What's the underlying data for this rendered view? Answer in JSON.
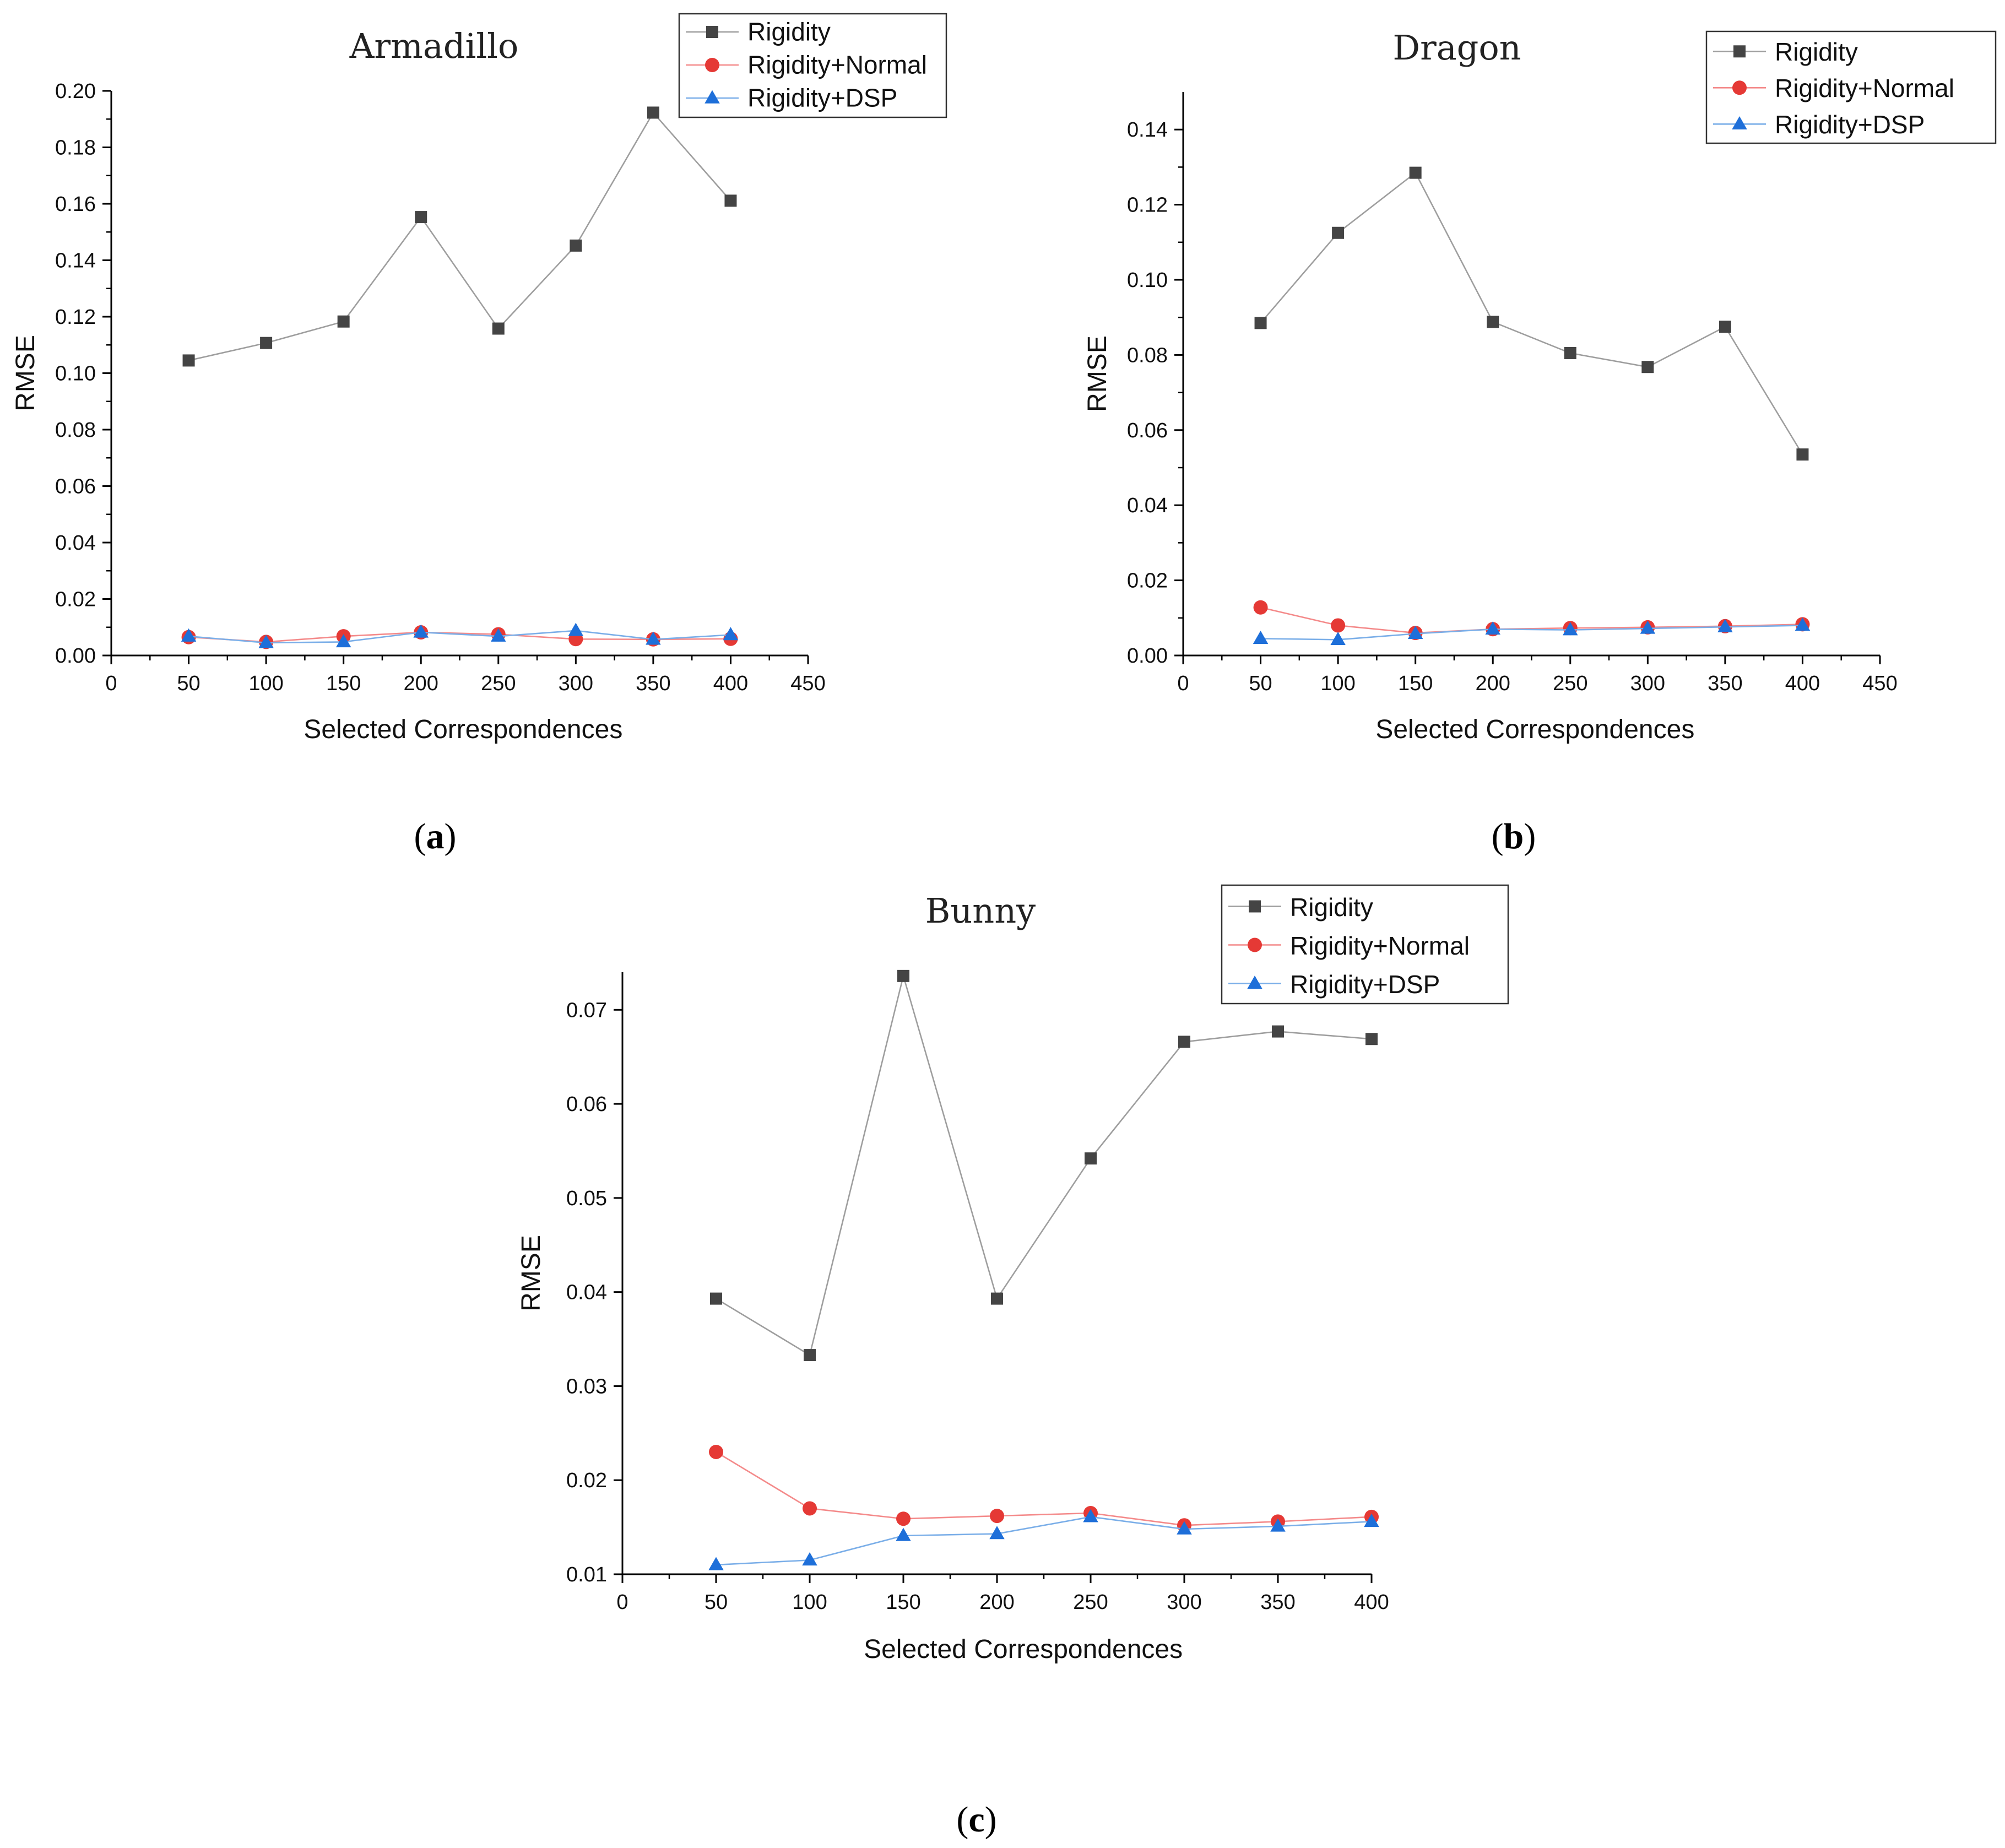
{
  "chart_data": [
    {
      "type": "line",
      "panel": "(a)",
      "panel_letter": "a",
      "title": "Armadillo",
      "xlabel": "Selected Correspondences",
      "ylabel": "RMSE",
      "xlim": [
        0,
        450
      ],
      "ylim": [
        0,
        0.2
      ],
      "x_ticks": [
        "0",
        "50",
        "100",
        "150",
        "200",
        "250",
        "300",
        "350",
        "400",
        "450"
      ],
      "y_ticks": [
        "0.00",
        "0.02",
        "0.04",
        "0.06",
        "0.08",
        "0.10",
        "0.12",
        "0.14",
        "0.16",
        "0.18",
        "0.20"
      ],
      "legend_position": "top-right",
      "x": [
        50,
        100,
        150,
        200,
        250,
        300,
        350,
        400
      ],
      "series": [
        {
          "name": "Rigidity",
          "color": "#444444",
          "line_color": "#9e9e9e",
          "marker": "square",
          "values": [
            0.1045,
            0.1107,
            0.1183,
            0.1553,
            0.1158,
            0.1452,
            0.1923,
            0.1611
          ]
        },
        {
          "name": "Rigidity+Normal",
          "color": "#e53935",
          "line_color": "#f48a8a",
          "marker": "circle",
          "values": [
            0.0065,
            0.0048,
            0.0068,
            0.0082,
            0.0075,
            0.0058,
            0.0057,
            0.0059
          ]
        },
        {
          "name": "Rigidity+DSP",
          "color": "#1e6fd9",
          "line_color": "#7aaee8",
          "marker": "triangle",
          "values": [
            0.0068,
            0.0045,
            0.0048,
            0.0082,
            0.0068,
            0.0088,
            0.0057,
            0.0073
          ]
        }
      ]
    },
    {
      "type": "line",
      "panel": "(b)",
      "panel_letter": "b",
      "title": "Dragon",
      "xlabel": "Selected Correspondences",
      "ylabel": "RMSE",
      "xlim": [
        0,
        450
      ],
      "ylim": [
        0,
        0.15
      ],
      "x_ticks": [
        "0",
        "50",
        "100",
        "150",
        "200",
        "250",
        "300",
        "350",
        "400",
        "450"
      ],
      "y_ticks": [
        "0.00",
        "0.02",
        "0.04",
        "0.06",
        "0.08",
        "0.10",
        "0.12",
        "0.14"
      ],
      "legend_position": "top-right",
      "x": [
        50,
        100,
        150,
        200,
        250,
        300,
        350,
        400
      ],
      "series": [
        {
          "name": "Rigidity",
          "color": "#444444",
          "line_color": "#9e9e9e",
          "marker": "square",
          "values": [
            0.0885,
            0.1125,
            0.1285,
            0.0888,
            0.0805,
            0.0768,
            0.0875,
            0.0535
          ]
        },
        {
          "name": "Rigidity+Normal",
          "color": "#e53935",
          "line_color": "#f48a8a",
          "marker": "circle",
          "values": [
            0.0128,
            0.008,
            0.006,
            0.007,
            0.0073,
            0.0075,
            0.0078,
            0.0083
          ]
        },
        {
          "name": "Rigidity+DSP",
          "color": "#1e6fd9",
          "line_color": "#7aaee8",
          "marker": "triangle",
          "values": [
            0.0045,
            0.0042,
            0.0058,
            0.007,
            0.0068,
            0.0072,
            0.0076,
            0.008
          ]
        }
      ]
    },
    {
      "type": "line",
      "panel": "(c)",
      "panel_letter": "c",
      "title": "Bunny",
      "xlabel": "Selected Correspondences",
      "ylabel": "RMSE",
      "xlim": [
        0,
        400
      ],
      "ylim": [
        0.01,
        0.074
      ],
      "x_ticks": [
        "0",
        "50",
        "100",
        "150",
        "200",
        "250",
        "300",
        "350",
        "400"
      ],
      "y_ticks": [
        "0.01",
        "0.02",
        "0.03",
        "0.04",
        "0.05",
        "0.06",
        "0.07"
      ],
      "legend_position": "top-right",
      "x": [
        50,
        100,
        150,
        200,
        250,
        300,
        350,
        400
      ],
      "series": [
        {
          "name": "Rigidity",
          "color": "#444444",
          "line_color": "#9e9e9e",
          "marker": "square",
          "values": [
            0.0393,
            0.0333,
            0.0736,
            0.0393,
            0.0542,
            0.0666,
            0.0677,
            0.0669
          ]
        },
        {
          "name": "Rigidity+Normal",
          "color": "#e53935",
          "line_color": "#f48a8a",
          "marker": "circle",
          "values": [
            0.023,
            0.017,
            0.0159,
            0.0162,
            0.0165,
            0.0152,
            0.0156,
            0.0161
          ]
        },
        {
          "name": "Rigidity+DSP",
          "color": "#1e6fd9",
          "line_color": "#7aaee8",
          "marker": "triangle",
          "values": [
            0.011,
            0.0115,
            0.0141,
            0.0143,
            0.0161,
            0.0148,
            0.0151,
            0.0156
          ]
        }
      ]
    }
  ]
}
